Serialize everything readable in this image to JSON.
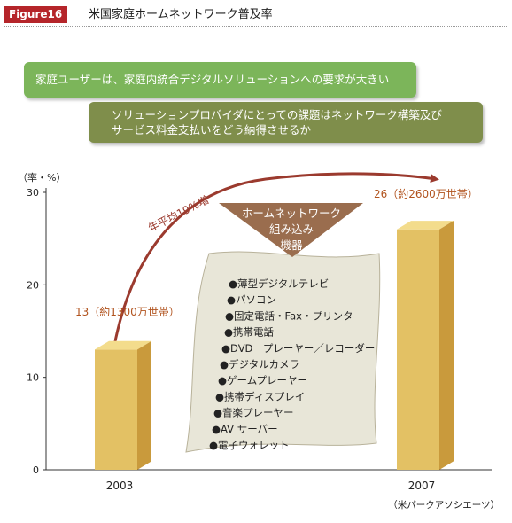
{
  "header": {
    "badge": "Figure16",
    "title": "米国家庭ホームネットワーク普及率"
  },
  "banners": {
    "top": "家庭ユーザーは、家庭内統合デジタルソリューションへの要求が大きい",
    "bottom_line1": "ソリューションプロバイダにとっての課題はネットワーク構築及び",
    "bottom_line2": "サービス料金支払いをどう納得させるか"
  },
  "chart_data": {
    "type": "bar",
    "ylabel": "（率・%）",
    "yticks": [
      "30",
      "20",
      "10",
      "0"
    ],
    "ylim": [
      0,
      30
    ],
    "categories": [
      "2003",
      "2007"
    ],
    "values": [
      13,
      26
    ],
    "data_labels": [
      "13（約1300万世帯）",
      "26（約2600万世帯）"
    ],
    "growth_annotation": "年平均19%増",
    "embedded_title": [
      "ホームネットワーク",
      "組み込み",
      "機器"
    ],
    "devices": [
      "●薄型デジタルテレビ",
      "●パソコン",
      "●固定電話・Fax・プリンタ",
      "●携帯電話",
      "●DVD　プレーヤー／レコーダー",
      "●デジタルカメラ",
      "●ゲームプレーヤー",
      "●携帯ディスプレイ",
      "●音楽プレーヤー",
      "●AV サーバー",
      "●電子ウォレット"
    ],
    "bar_color": "#e3c164",
    "bar_top_color": "#f3dc8c",
    "bar_side_color": "#c99a3c",
    "grid": false
  },
  "source": "（米パークアソシエーツ）"
}
